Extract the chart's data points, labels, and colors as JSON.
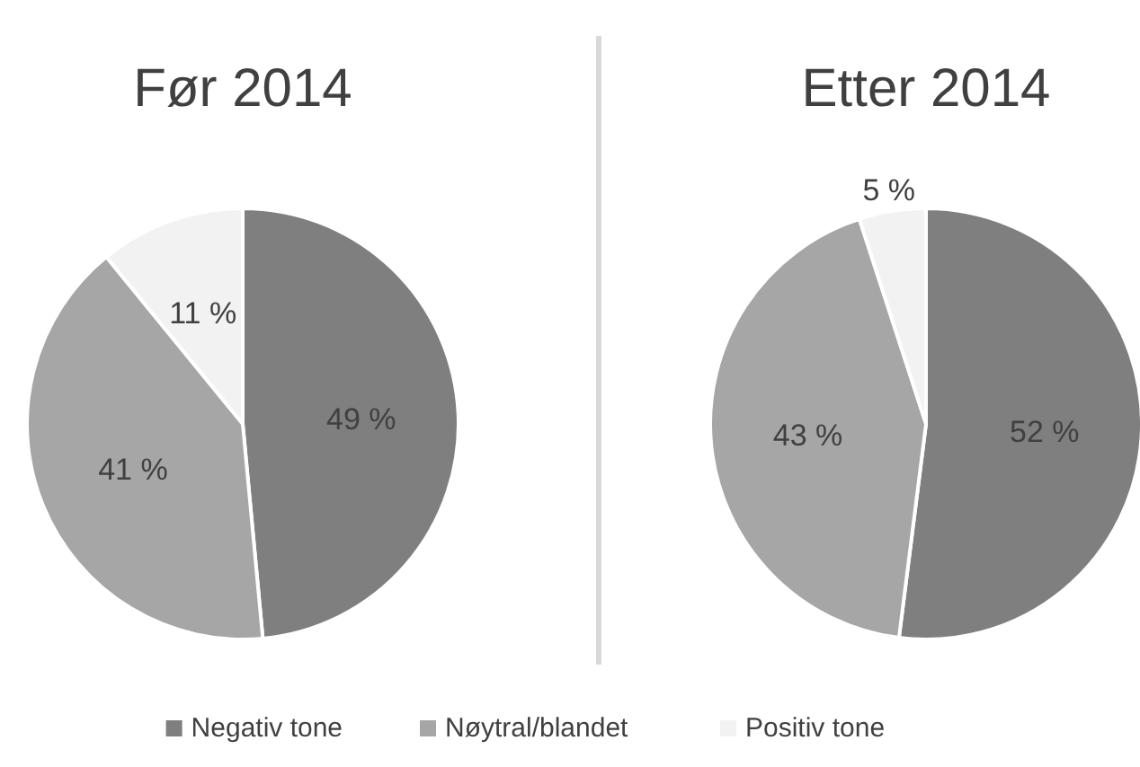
{
  "chart_data": [
    {
      "type": "pie",
      "title": "Før 2014",
      "categories": [
        "Negativ tone",
        "Nøytral/blandet",
        "Positiv tone"
      ],
      "values": [
        49,
        41,
        11
      ],
      "value_labels": [
        "49 %",
        "41 %",
        "11 %"
      ],
      "colors": [
        "#7f7f7f",
        "#a6a6a6",
        "#f2f2f2"
      ],
      "legend": "bottom"
    },
    {
      "type": "pie",
      "title": "Etter 2014",
      "categories": [
        null,
        null,
        null
      ],
      "values": [
        52,
        43,
        5
      ],
      "value_labels": [
        "52 %",
        "43 %",
        "5 %"
      ],
      "colors": [
        "#7f7f7f",
        "#a6a6a6",
        "#f2f2f2"
      ]
    }
  ]
}
